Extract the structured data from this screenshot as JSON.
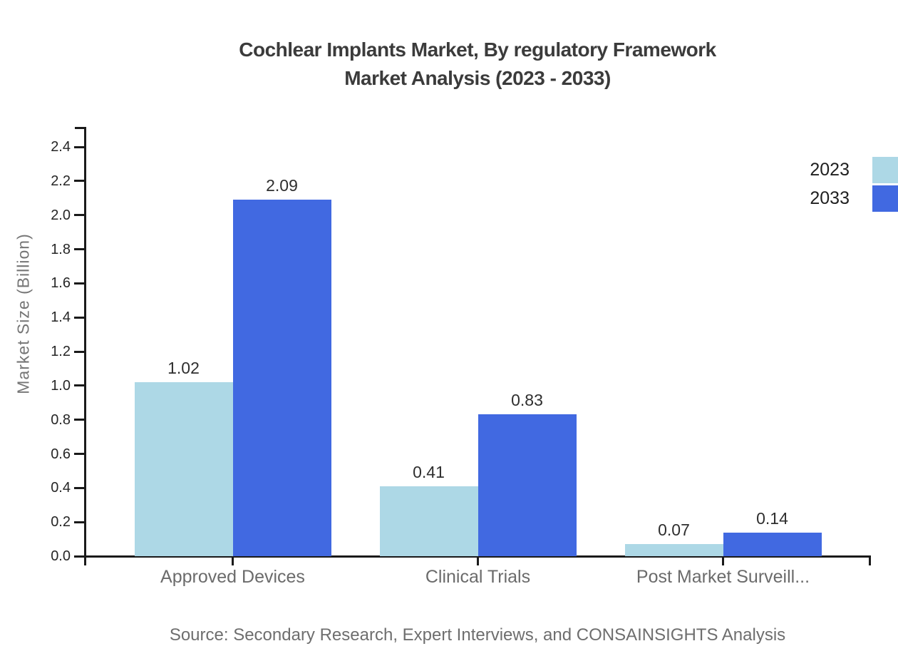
{
  "title": {
    "line1": "Cochlear Implants Market, By regulatory Framework",
    "line2": "Market Analysis (2023 - 2033)"
  },
  "chart_data": {
    "type": "bar",
    "categories": [
      "Approved Devices",
      "Clinical Trials",
      "Post Market Surveill..."
    ],
    "series": [
      {
        "name": "2023",
        "color": "#ADD8E6",
        "values": [
          1.02,
          0.41,
          0.07
        ]
      },
      {
        "name": "2033",
        "color": "#4169E1",
        "values": [
          2.09,
          0.83,
          0.14
        ]
      }
    ],
    "title": "Cochlear Implants Market, By regulatory Framework Market Analysis (2023 - 2033)",
    "xlabel": "",
    "ylabel": "Market Size (Billion)",
    "ylim": [
      0,
      2.52
    ],
    "yticks": [
      0.0,
      0.2,
      0.4,
      0.6,
      0.8,
      1.0,
      1.2,
      1.4,
      1.6,
      1.8,
      2.0,
      2.2,
      2.4
    ],
    "grid": false,
    "legend_position": "top-right",
    "value_label_decimals": 2
  },
  "colors": {
    "series_2023": "#ADD8E6",
    "series_2033": "#4169E1",
    "axis": "#1a1a1a",
    "title_text": "#3b3b3b",
    "muted_text": "#6b6b6b"
  },
  "source": "Source: Secondary Research, Expert Interviews, and CONSAINSIGHTS Analysis"
}
